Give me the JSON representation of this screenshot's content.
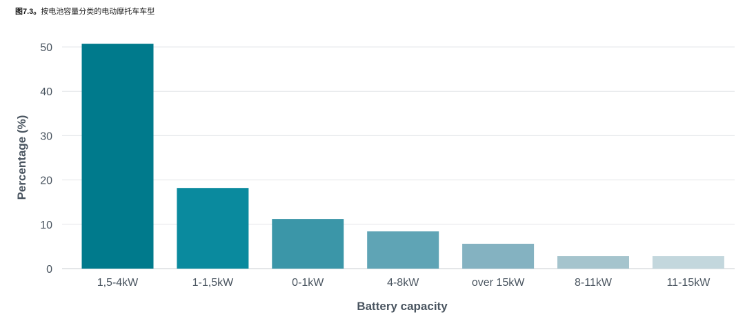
{
  "figure": {
    "number": "图7.3。",
    "caption": "按电池容量分类的电动摩托车车型"
  },
  "chart_data": {
    "type": "bar",
    "title": "按电池容量分类的电动摩托车车型",
    "xlabel": "Battery capacity",
    "ylabel": "Percentage (%)",
    "categories": [
      "1,5-4kW",
      "1-1,5kW",
      "0-1kW",
      "4-8kW",
      "over 15kW",
      "8-11kW",
      "11-15kW"
    ],
    "values": [
      50.7,
      18.2,
      11.2,
      8.4,
      5.6,
      2.8,
      2.8
    ],
    "ylim": [
      0,
      50
    ],
    "yticks": [
      0,
      10,
      20,
      30,
      40,
      50
    ],
    "grid": true,
    "bar_colors": [
      "#007a8c",
      "#0a8a9e",
      "#3b96a8",
      "#5fa4b5",
      "#84b2c1",
      "#a5c4cd",
      "#c3d7dd"
    ],
    "grid_color": "#e3e6e8",
    "axis_color": "#c9cdd0"
  }
}
